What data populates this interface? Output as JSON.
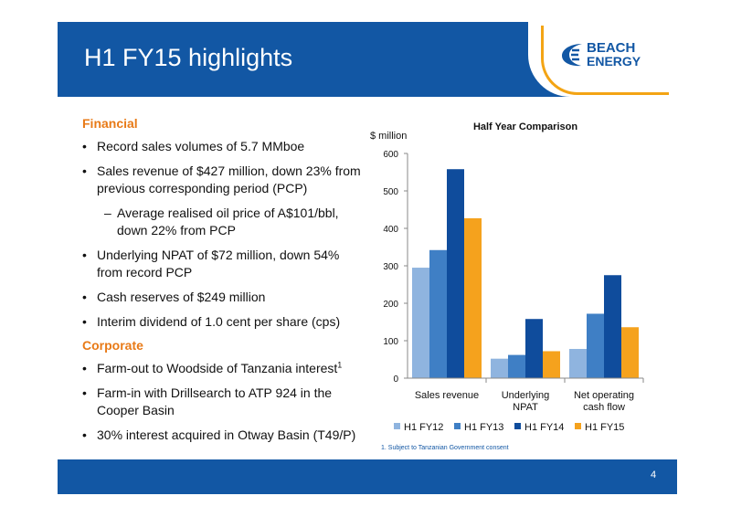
{
  "slide": {
    "title": "H1 FY15 highlights",
    "page_number": "4",
    "logo": {
      "line1": "BEACH",
      "line2": "ENERGY"
    }
  },
  "left_panel": {
    "financial_heading": "Financial",
    "financial_bullets": [
      "Record sales volumes of 5.7 MMboe",
      "Sales revenue of $427 million, down 23% from previous corresponding period (PCP)",
      "Average realised oil price of A$101/bbl, down 22% from PCP",
      "Underlying NPAT of $72 million, down 54% from record PCP",
      "Cash reserves of $249 million",
      "Interim dividend of 1.0 cent per share (cps)"
    ],
    "corporate_heading": "Corporate",
    "corporate_bullets": [
      "Farm-out to Woodside of Tanzania interest",
      "Farm-in with Drillsearch to ATP 924 in the Cooper Basin",
      "30% interest acquired in Otway Basin (T49/P)"
    ],
    "footnote_marker": "1",
    "bullet_symbol": "•",
    "sub_bullet_symbol": "–"
  },
  "chart_footnote": "1. Subject to Tanzanian Government consent",
  "colors": {
    "brand_blue": "#1257a4",
    "heading_orange": "#e87a17",
    "logo_gold": "#f3a414"
  },
  "chart_data": {
    "type": "bar",
    "title": "Half Year Comparison",
    "ylabel": "$ million",
    "xlabel": "",
    "ylim": [
      0,
      600
    ],
    "yticks": [
      0,
      100,
      200,
      300,
      400,
      500,
      600
    ],
    "categories": [
      [
        "Sales revenue"
      ],
      [
        "Underlying",
        "NPAT"
      ],
      [
        "Net operating",
        "cash flow"
      ]
    ],
    "series": [
      {
        "name": "H1 FY12",
        "color": "#8fb4df",
        "values": [
          295,
          52,
          78
        ]
      },
      {
        "name": "H1 FY13",
        "color": "#3f7fc5",
        "values": [
          342,
          62,
          172
        ]
      },
      {
        "name": "H1 FY14",
        "color": "#0f4c9c",
        "values": [
          558,
          158,
          275
        ]
      },
      {
        "name": "H1 FY15",
        "color": "#f5a21d",
        "values": [
          427,
          72,
          136
        ]
      }
    ],
    "grid": false,
    "legend": "bottom"
  }
}
